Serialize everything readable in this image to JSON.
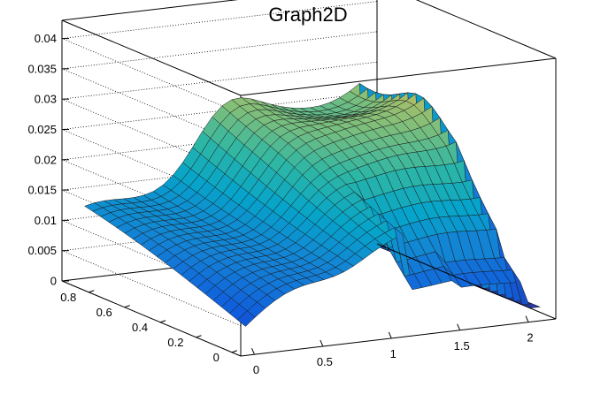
{
  "chart_data": {
    "type": "surface",
    "title": "Graph2D",
    "xlabel": "",
    "ylabel": "",
    "zlabel": "",
    "xlim": [
      -0.1,
      2.2
    ],
    "ylim": [
      -0.05,
      0.95
    ],
    "zlim": [
      0,
      0.043
    ],
    "x_ticks": [
      0,
      0.5,
      1,
      1.5,
      2
    ],
    "x_tick_labels": [
      "0",
      "0.5",
      "1",
      "1.5",
      "2"
    ],
    "y_ticks": [
      0,
      0.2,
      0.4,
      0.6,
      0.8
    ],
    "y_tick_labels": [
      "0",
      "0.2",
      "0.4",
      "0.6",
      "0.8"
    ],
    "z_ticks": [
      0,
      0.005,
      0.01,
      0.015,
      0.02,
      0.025,
      0.03,
      0.035,
      0.04
    ],
    "z_tick_labels": [
      "0",
      "0.005",
      "0.01",
      "0.015",
      "0.02",
      "0.025",
      "0.03",
      "0.035",
      "0.04"
    ],
    "grid": true,
    "palette": [
      "#352a87",
      "#0f5cdd",
      "#1481d6",
      "#06a4ca",
      "#2eb7a4",
      "#87bf77",
      "#d1bb59",
      "#fec832",
      "#f9fb0e"
    ]
  }
}
